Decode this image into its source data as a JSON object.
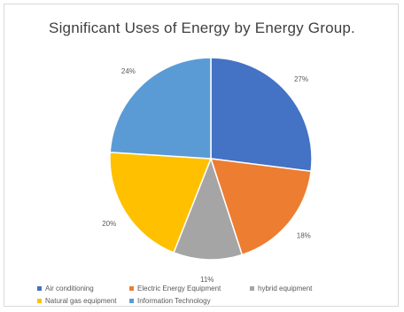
{
  "chart_data": {
    "type": "pie",
    "title": "Significant Uses of Energy by Energy Group.",
    "slices": [
      {
        "label": "Air conditioning",
        "value": 27,
        "value_label": "27%",
        "color": "#4472C4"
      },
      {
        "label": "Electric Energy Equipment",
        "value": 18,
        "value_label": "18%",
        "color": "#ED7D31"
      },
      {
        "label": "hybrid equipment",
        "value": 11,
        "value_label": "11%",
        "color": "#A5A5A5"
      },
      {
        "label": "Natural gas equipment",
        "value": 20,
        "value_label": "20%",
        "color": "#FFC000"
      },
      {
        "label": "Information Technology",
        "value": 24,
        "value_label": "24%",
        "color": "#5B9BD5"
      }
    ],
    "legend_position": "bottom"
  }
}
